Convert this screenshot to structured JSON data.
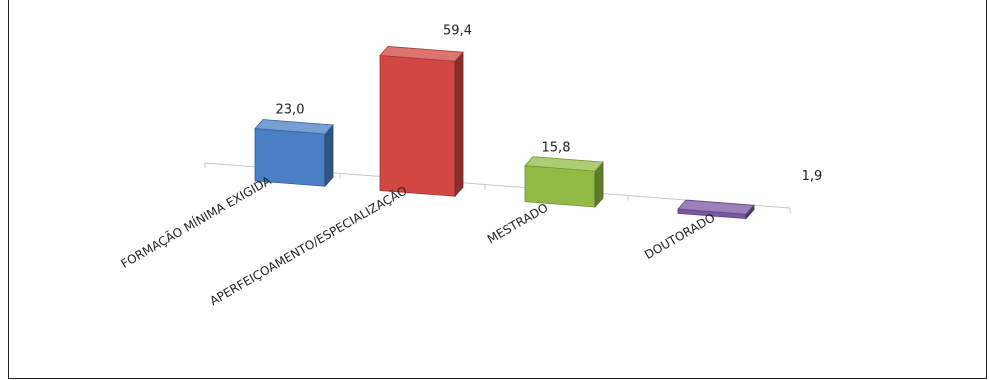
{
  "chart_data": {
    "type": "bar",
    "style": "3d",
    "categories": [
      "FORMAÇÃO MÍNIMA EXIGIDA",
      "APERFEIÇOAMENTO/ESPECIALIZAÇÃO",
      "MESTRADO",
      "DOUTORADO"
    ],
    "values": [
      23.0,
      59.4,
      15.8,
      1.9
    ],
    "value_labels": [
      "23,0",
      "59,4",
      "15,8",
      "1,9"
    ],
    "colors": [
      "#4a7fc6",
      "#d24643",
      "#92bb45",
      "#7b56a3"
    ],
    "grid": false,
    "legend": "none"
  }
}
